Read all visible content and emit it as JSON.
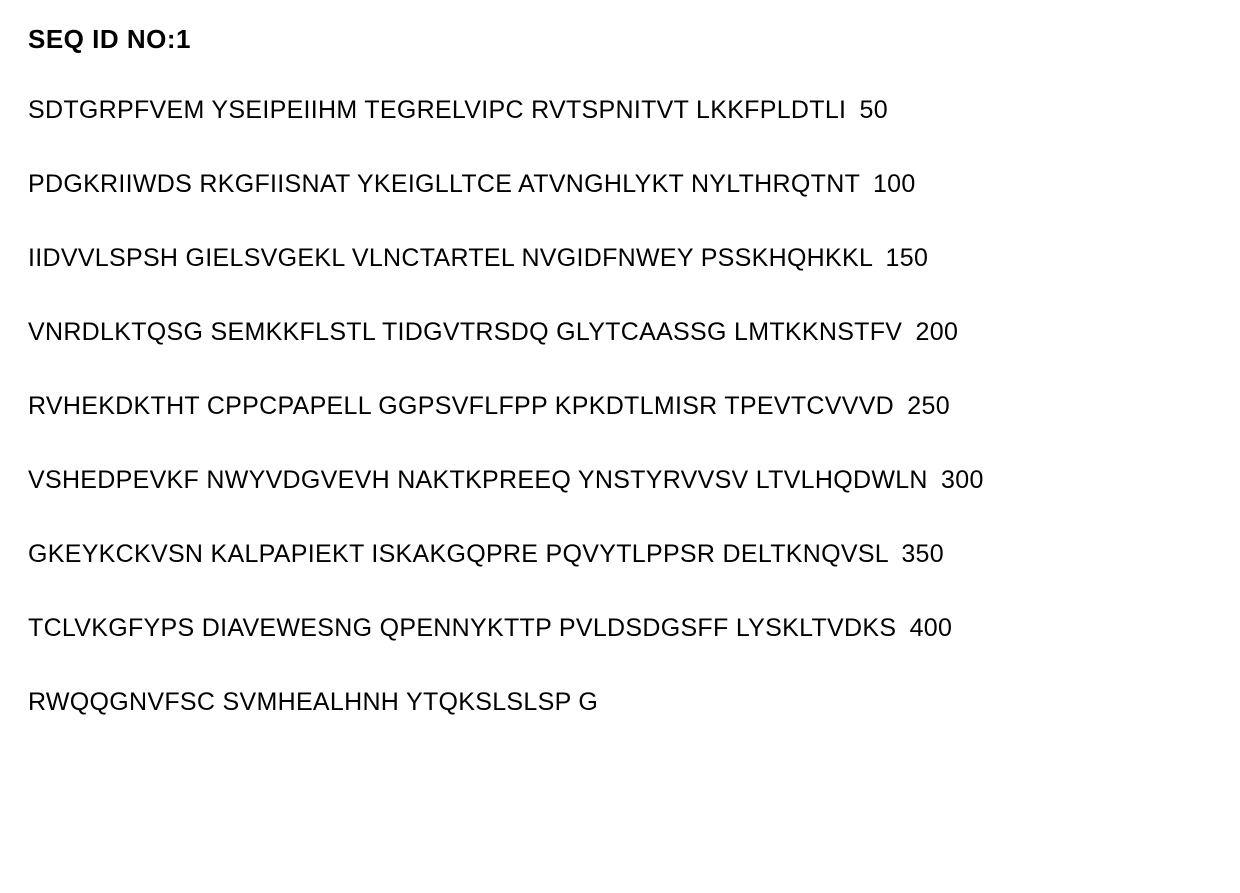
{
  "header": "SEQ ID NO:1",
  "lines": [
    {
      "blocks": [
        "SDTGRPFVEM",
        "YSEIPEIIHM",
        "TEGRELVIPC",
        "RVTSPNITVT",
        "LKKFPLDTLI"
      ],
      "pos": "50"
    },
    {
      "blocks": [
        "PDGKRIIWDS",
        "RKGFIISNAT",
        "YKEIGLLTCE",
        "ATVNGHLYKT",
        "NYLTHRQTNT"
      ],
      "pos": "100"
    },
    {
      "blocks": [
        "IIDVVLSPSH",
        "GIELSVGEKL",
        "VLNCTARTEL",
        "NVGIDFNWEY",
        "PSSKHQHKKL"
      ],
      "pos": "150"
    },
    {
      "blocks": [
        "VNRDLKTQSG",
        "SEMKKFLSTL",
        "TIDGVTRSDQ",
        "GLYTCAASSG",
        "LMTKKNSTFV"
      ],
      "pos": "200"
    },
    {
      "blocks": [
        "RVHEKDKTHT",
        "CPPCPAPELL",
        "GGPSVFLFPP",
        "KPKDTLMISR",
        "TPEVTCVVVD"
      ],
      "pos": "250"
    },
    {
      "blocks": [
        "VSHEDPEVKF",
        "NWYVDGVEVH",
        "NAKTKPREEQ",
        "YNSTYRVVSV",
        "LTVLHQDWLN"
      ],
      "pos": "300"
    },
    {
      "blocks": [
        "GKEYKCKVSN",
        "KALPAPIEKT",
        "ISKAKGQPRE",
        "PQVYTLPPSR",
        "DELTKNQVSL"
      ],
      "pos": "350"
    },
    {
      "blocks": [
        "TCLVKGFYPS",
        "DIAVEWESNG",
        "QPENNYKTTP",
        "PVLDSDGSFF",
        "LYSKLTVDKS"
      ],
      "pos": "400"
    },
    {
      "blocks": [
        "RWQQGNVFSC",
        "SVMHEALHNH",
        "YTQKSLSLSP",
        "G"
      ],
      "pos": ""
    }
  ]
}
